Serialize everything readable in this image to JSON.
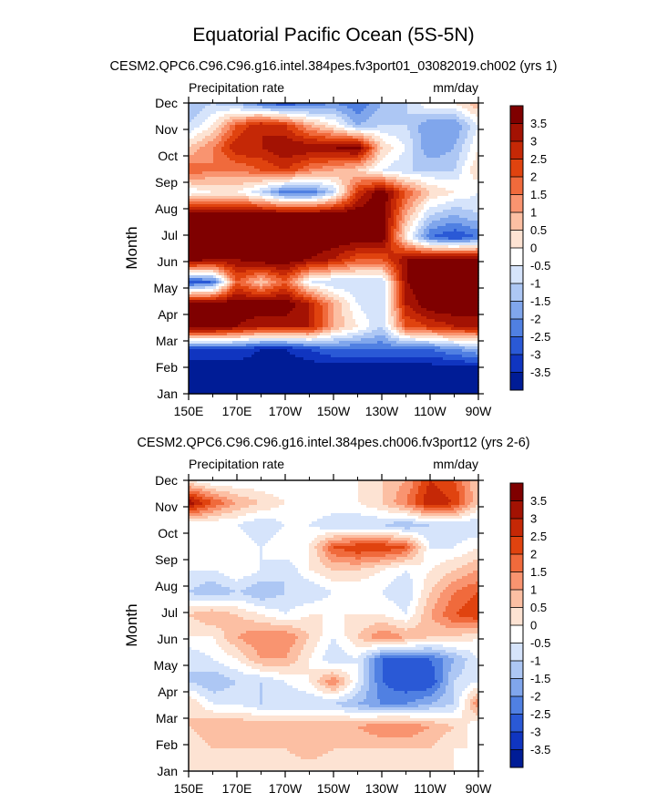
{
  "figure": {
    "title": "Equatorial Pacific Ocean (5S-5N)"
  },
  "colorbar": {
    "levels": [
      "3.5",
      "3",
      "2.5",
      "2",
      "1.5",
      "1",
      "0.5",
      "0",
      "-0.5",
      "-1",
      "-1.5",
      "-2",
      "-2.5",
      "-3",
      "-3.5"
    ],
    "colors": [
      "#7f0000",
      "#a31203",
      "#c52806",
      "#e0430f",
      "#f06a3c",
      "#f99470",
      "#fcbfa3",
      "#fde3d3",
      "#ffffff",
      "#d6e4fb",
      "#adc7f4",
      "#80a6ec",
      "#5080e2",
      "#2a59d6",
      "#1035c0",
      "#001c96"
    ]
  },
  "chart_data": [
    {
      "type": "heatmap",
      "subtitle": "CESM2.QPC6.C96.C96.g16.intel.384pes.fv3port01_03082019.ch002 (yrs 1)",
      "left_label": "Precipitation rate",
      "right_label": "mm/day",
      "ylabel": "Month",
      "xlabel": "",
      "x_ticks": [
        "150E",
        "170E",
        "170W",
        "150W",
        "130W",
        "110W",
        "90W"
      ],
      "y_ticks": [
        "Jan",
        "Feb",
        "Mar",
        "Apr",
        "May",
        "Jun",
        "Jul",
        "Aug",
        "Sep",
        "Oct",
        "Nov",
        "Dec"
      ],
      "x_lon_range": [
        150,
        270
      ],
      "grid_rows": [
        [
          -4,
          -4,
          -4,
          -4,
          -4,
          -4,
          -4,
          -4,
          -4,
          -4,
          -4,
          -4,
          -4
        ],
        [
          -4,
          -4,
          -4,
          -4,
          -4,
          -4,
          -4,
          -4,
          -4,
          -4,
          -4,
          -4,
          -4
        ],
        [
          -3,
          -3,
          -3,
          -3.5,
          -3.5,
          -3,
          -2.5,
          -2.5,
          -2.5,
          -2.5,
          -2.5,
          -2,
          -1.5
        ],
        [
          4,
          4,
          3.5,
          3,
          3,
          3,
          1,
          0,
          -1,
          2,
          2.5,
          3,
          3
        ],
        [
          4,
          4,
          4,
          4,
          4,
          3,
          1,
          -0.5,
          -1,
          3,
          4,
          4,
          4
        ],
        [
          -3,
          -2.5,
          2,
          0.5,
          2,
          -0.5,
          -1,
          -1,
          -1,
          3.5,
          4,
          4,
          4
        ],
        [
          4,
          3.5,
          3.5,
          4,
          4,
          3.5,
          3,
          2,
          2,
          3.5,
          4,
          4,
          4
        ],
        [
          4,
          4,
          4,
          4,
          4,
          4,
          4,
          4,
          4,
          0,
          -2.5,
          -3,
          -2.5
        ],
        [
          4,
          4,
          4,
          4,
          4,
          4,
          4,
          4,
          4,
          1,
          -1,
          -1.5,
          -1
        ],
        [
          -0.5,
          0,
          0,
          -1,
          -2.5,
          -2.5,
          -1,
          2.5,
          4,
          2,
          0.5,
          0,
          -0.5
        ],
        [
          2,
          1.5,
          1.5,
          2,
          2.5,
          1.5,
          1,
          0.5,
          -0.5,
          -1,
          -1,
          -1,
          0.5
        ],
        [
          0.5,
          1.5,
          3,
          3,
          3.5,
          3.5,
          3.5,
          4,
          0.5,
          -0.5,
          -2,
          -1.5,
          0
        ],
        [
          -1,
          0,
          2,
          3,
          2.5,
          1,
          0,
          -1.5,
          -1,
          -1,
          -2,
          -2,
          -0.5
        ],
        [
          -1.5,
          -1,
          -1.5,
          -2.5,
          -3,
          -2.5,
          -2,
          -2.5,
          -1.5,
          -1,
          0,
          0,
          1
        ]
      ]
    },
    {
      "type": "heatmap",
      "subtitle": "CESM2.QPC6.C96.C96.g16.intel.384pes.ch006.fv3port12 (yrs 2-6)",
      "left_label": "Precipitation rate",
      "right_label": "mm/day",
      "ylabel": "Month",
      "xlabel": "",
      "x_ticks": [
        "150E",
        "170E",
        "170W",
        "150W",
        "130W",
        "110W",
        "90W"
      ],
      "y_ticks": [
        "Jan",
        "Feb",
        "Mar",
        "Apr",
        "May",
        "Jun",
        "Jul",
        "Aug",
        "Sep",
        "Oct",
        "Nov",
        "Dec"
      ],
      "x_lon_range": [
        150,
        270
      ],
      "grid_rows": [
        [
          0,
          0,
          0,
          0,
          0,
          0,
          0,
          0,
          0,
          0,
          0,
          0,
          0
        ],
        [
          0,
          0.5,
          0.5,
          0.5,
          0.5,
          1,
          0.5,
          0.5,
          0.5,
          0.5,
          0.5,
          0,
          0
        ],
        [
          0.5,
          1,
          1,
          1,
          1,
          1,
          1,
          1,
          1.5,
          1.5,
          1,
          0.5,
          -0.5
        ],
        [
          0.5,
          -0.5,
          -0.5,
          -1,
          -1,
          -1,
          -1,
          -1.5,
          -2,
          -2,
          -1.5,
          -1,
          1.5
        ],
        [
          -1,
          -1.5,
          -1,
          -1,
          -0.5,
          0,
          1.5,
          -0.5,
          -2.5,
          -3,
          -3,
          -1,
          -0.5
        ],
        [
          -1,
          -0.5,
          0,
          1,
          1,
          0,
          -1,
          -0.5,
          -2.5,
          -2.5,
          -2.5,
          -1.5,
          -0.5
        ],
        [
          0,
          0,
          1,
          1.5,
          1.5,
          0.5,
          -0.5,
          0.5,
          1.5,
          1,
          0.5,
          0.5,
          0
        ],
        [
          0.5,
          1,
          0.5,
          0,
          -0.5,
          0,
          0,
          0,
          0,
          -0.5,
          1,
          2,
          2.5
        ],
        [
          -1,
          -1.5,
          -1,
          -1.5,
          -1,
          -1,
          -0.5,
          -0.5,
          -0.5,
          -1,
          0.5,
          1.5,
          2
        ],
        [
          -0.5,
          -0.5,
          0,
          -0.5,
          -1,
          0,
          0.5,
          0.5,
          0,
          -0.5,
          0,
          0.5,
          1
        ],
        [
          -0.5,
          0,
          0,
          -0.5,
          0,
          0,
          2,
          2.5,
          2.5,
          2,
          -0.5,
          -0.5,
          0
        ],
        [
          -0.5,
          -0.5,
          -0.5,
          -1,
          -0.5,
          -0.5,
          -1,
          -1,
          -1,
          -1.5,
          -1,
          -1,
          -1
        ],
        [
          3.5,
          2,
          1,
          0.5,
          0,
          0,
          0,
          0,
          0.5,
          1.5,
          3,
          2.5,
          0.5
        ],
        [
          0,
          -0.5,
          -0.5,
          -0.5,
          -0.5,
          -0.5,
          -0.5,
          0,
          0.5,
          1,
          2.5,
          2,
          0.5
        ]
      ]
    }
  ]
}
